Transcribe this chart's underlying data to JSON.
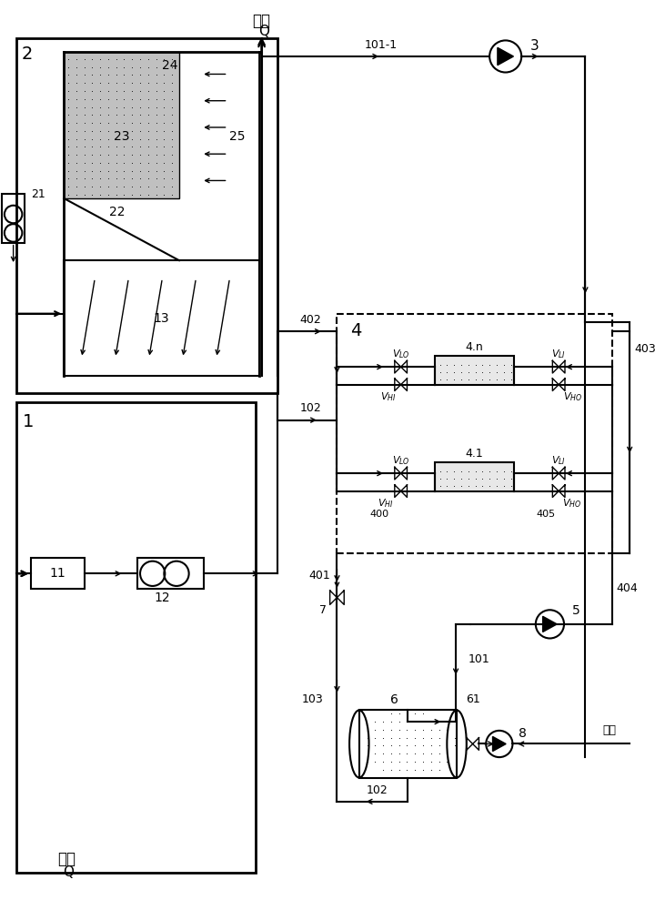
{
  "bg_color": "#ffffff",
  "line_color": "#000000",
  "labels": {
    "jinshui": "进水",
    "chanshui": "产水",
    "Q": "Q",
    "kongqi": "空气"
  }
}
